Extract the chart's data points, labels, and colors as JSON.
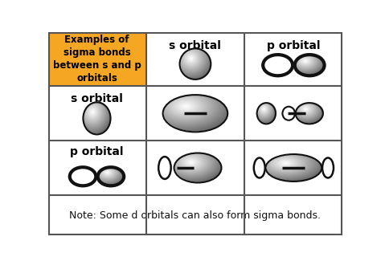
{
  "title": "Examples of\nsigma bonds\nbetween s and p\norbitals",
  "note": "Note: Some d orbitals can also form sigma bonds.",
  "header_col1": "s orbital",
  "header_col2": "p orbital",
  "orange_bg": "#F5A623",
  "white_bg": "#FFFFFF",
  "grid_color": "#555555",
  "row2_label": "s orbital",
  "row3_label": "p orbital",
  "col_bounds": [
    0,
    158,
    316,
    474
  ],
  "row_bounds": [
    0,
    88,
    176,
    264,
    330
  ],
  "fig_width": 4.74,
  "fig_height": 3.3,
  "dpi": 100
}
